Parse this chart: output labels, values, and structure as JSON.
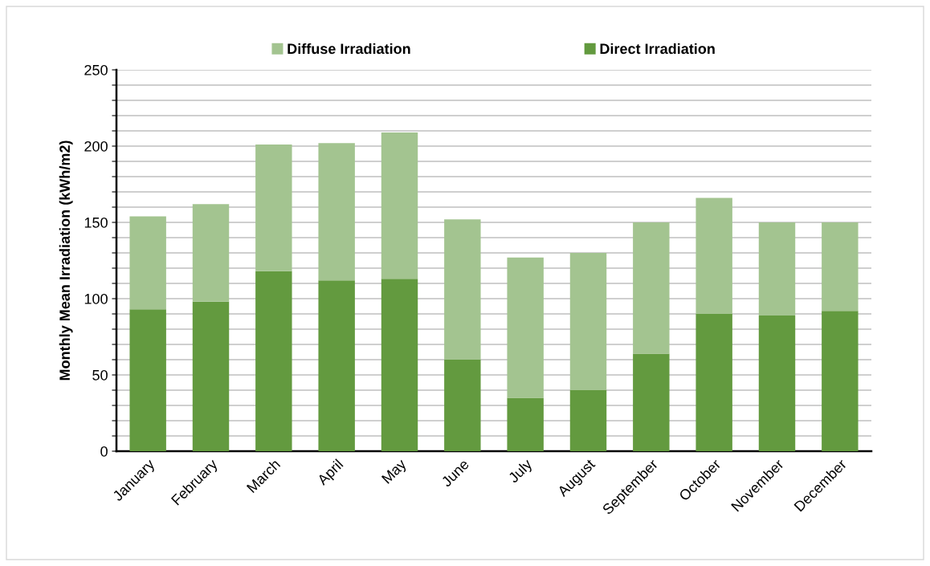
{
  "chart_data": {
    "type": "bar",
    "stacked": true,
    "ylabel": "Monthly Mean Irradiation (kWh/m2)",
    "categories": [
      "January",
      "February",
      "March",
      "April",
      "May",
      "June",
      "July",
      "August",
      "September",
      "October",
      "November",
      "December"
    ],
    "series": [
      {
        "name": "Direct Irradiation",
        "color": "#639a3f",
        "values": [
          93,
          98,
          118,
          112,
          113,
          60,
          35,
          40,
          64,
          90,
          89,
          92
        ]
      },
      {
        "name": "Diffuse Irradiation",
        "color": "#a3c490",
        "values": [
          61,
          64,
          83,
          90,
          96,
          92,
          92,
          90,
          86,
          76,
          61,
          58
        ]
      }
    ],
    "ylim": [
      0,
      250
    ],
    "yticks": [
      0,
      {
        "value": 10,
        "label": null
      },
      {
        "value": 20,
        "label": null
      },
      {
        "value": 30,
        "label": null
      },
      {
        "value": 40,
        "label": null
      },
      50,
      {
        "value": 60,
        "label": null
      },
      {
        "value": 70,
        "label": null
      },
      {
        "value": 80,
        "label": null
      },
      {
        "value": 90,
        "label": null
      },
      100,
      {
        "value": 110,
        "label": null
      },
      {
        "value": 120,
        "label": null
      },
      {
        "value": 130,
        "label": null
      },
      {
        "value": 140,
        "label": null
      },
      150,
      {
        "value": 160,
        "label": null
      },
      {
        "value": 170,
        "label": null
      },
      {
        "value": 180,
        "label": null
      },
      {
        "value": 190,
        "label": null
      },
      200,
      {
        "value": 210,
        "label": null
      },
      {
        "value": 220,
        "label": null
      },
      {
        "value": 230,
        "label": null
      },
      {
        "value": 240,
        "label": null
      },
      250
    ],
    "grid": "y",
    "legend": "top"
  }
}
